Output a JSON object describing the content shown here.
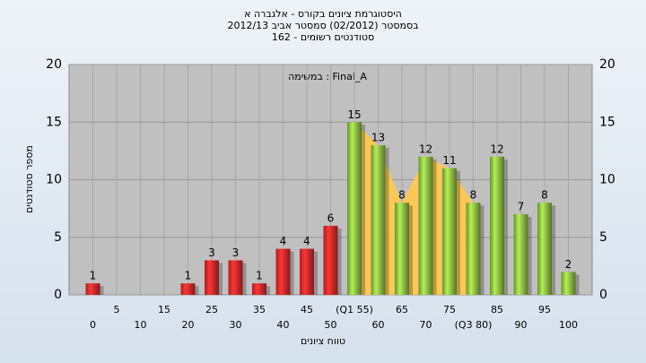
{
  "chart_data": {
    "type": "bar",
    "title": [
      "היסטוגרמת ציונים בקורס - אלגברה א",
      "בסמסטר (02/2012) סמסטר אביב 2012/13",
      "סטודנטים רשומים - 162"
    ],
    "annotation": "במשימה : Final_A",
    "x_label": "טווח ציונים",
    "y_label": "מספר סטודנטים",
    "categories": [
      "0",
      "5",
      "10",
      "15",
      "20",
      "25",
      "30",
      "35",
      "40",
      "45",
      "50",
      "(Q1 55)",
      "60",
      "65",
      "70",
      "75",
      "(Q3 80)",
      "85",
      "90",
      "95",
      "100"
    ],
    "values": [
      1,
      0,
      0,
      0,
      1,
      3,
      3,
      1,
      4,
      4,
      6,
      15,
      13,
      8,
      12,
      11,
      8,
      12,
      7,
      8,
      2
    ],
    "colors": [
      "#e02a2a",
      "#e02a2a",
      "#e02a2a",
      "#e02a2a",
      "#e02a2a",
      "#e02a2a",
      "#e02a2a",
      "#e02a2a",
      "#e02a2a",
      "#e02a2a",
      "#e02a2a",
      "#8fc043",
      "#8fc043",
      "#8fc043",
      "#8fc043",
      "#8fc043",
      "#8fc043",
      "#8fc043",
      "#8fc043",
      "#8fc043",
      "#8fc043"
    ],
    "ylim": [
      0,
      20
    ],
    "yticks": [
      0,
      5,
      10,
      15,
      20
    ],
    "grid": true
  }
}
